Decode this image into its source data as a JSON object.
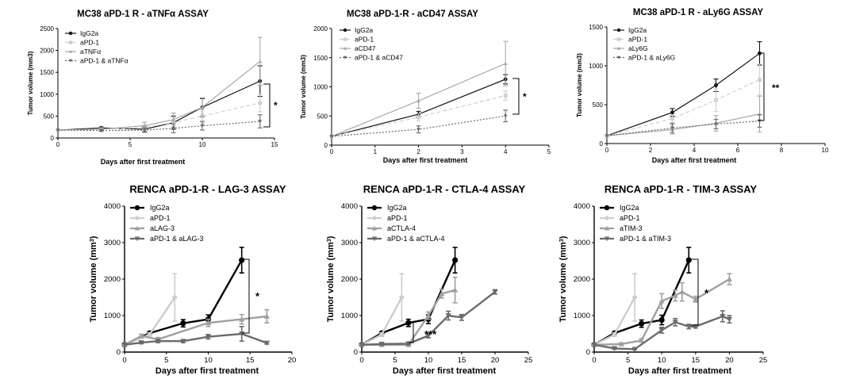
{
  "chart_data": [
    {
      "type": "line",
      "title": "MC38 aPD-1 R - aTNFα ASSAY",
      "xlabel": "Days after first treatment",
      "ylabel": "Tumor volume (mm3)",
      "xlim": [
        0,
        15
      ],
      "ylim": [
        0,
        2500
      ],
      "xticks": [
        0,
        5,
        10,
        15
      ],
      "yticks": [
        0,
        500,
        1000,
        1500,
        2000,
        2500
      ],
      "legend_position": "top-left",
      "significance": "*",
      "series": [
        {
          "name": "IgG2a",
          "color": "#111111",
          "dash": "",
          "marker": "circle",
          "x": [
            0,
            3,
            6,
            8,
            10,
            14
          ],
          "y": [
            180,
            230,
            200,
            350,
            700,
            1300
          ],
          "err": [
            0,
            20,
            60,
            150,
            200,
            350
          ]
        },
        {
          "name": "aPD-1",
          "color": "#cfcfcf",
          "dash": "5,3",
          "marker": "square",
          "x": [
            0,
            3,
            6,
            8,
            10,
            14
          ],
          "y": [
            180,
            200,
            240,
            350,
            500,
            800
          ],
          "err": [
            0,
            20,
            60,
            120,
            150,
            200
          ]
        },
        {
          "name": "aTNFα",
          "color": "#a8a8a8",
          "dash": "",
          "marker": "triangle",
          "x": [
            0,
            3,
            6,
            8,
            10,
            14
          ],
          "y": [
            180,
            200,
            280,
            420,
            700,
            1750
          ],
          "err": [
            0,
            20,
            80,
            150,
            220,
            550
          ]
        },
        {
          "name": "aPD-1 & aTNFα",
          "color": "#6a6a6a",
          "dash": "2,2",
          "marker": "triangle-down",
          "x": [
            0,
            3,
            6,
            8,
            10,
            14
          ],
          "y": [
            180,
            170,
            180,
            220,
            280,
            380
          ],
          "err": [
            0,
            20,
            50,
            100,
            100,
            150
          ]
        }
      ]
    },
    {
      "type": "line",
      "title": "MC38 aPD-1-R - aCD47 ASSAY",
      "xlabel": "Days after first treatment",
      "ylabel": "Tumor volume (mm3)",
      "xlim": [
        0,
        5
      ],
      "ylim": [
        0,
        2000
      ],
      "xticks": [
        0,
        1,
        2,
        3,
        4,
        5
      ],
      "yticks": [
        0,
        500,
        1000,
        1500,
        2000
      ],
      "legend_position": "top-left",
      "significance": "*",
      "series": [
        {
          "name": "IgG2a",
          "color": "#111111",
          "dash": "",
          "marker": "circle",
          "x": [
            0,
            2,
            4
          ],
          "y": [
            150,
            530,
            1130
          ],
          "err": [
            0,
            50,
            80
          ]
        },
        {
          "name": "aPD-1",
          "color": "#cfcfcf",
          "dash": "5,3",
          "marker": "square",
          "x": [
            0,
            2,
            4
          ],
          "y": [
            150,
            480,
            850
          ],
          "err": [
            0,
            60,
            80
          ]
        },
        {
          "name": "aCD47",
          "color": "#a8a8a8",
          "dash": "",
          "marker": "triangle",
          "x": [
            0,
            2,
            4
          ],
          "y": [
            150,
            760,
            1400
          ],
          "err": [
            0,
            130,
            380
          ]
        },
        {
          "name": "aPD-1 & aCD47",
          "color": "#6a6a6a",
          "dash": "2,2",
          "marker": "triangle-down",
          "x": [
            0,
            2,
            4
          ],
          "y": [
            150,
            270,
            500
          ],
          "err": [
            0,
            60,
            100
          ]
        }
      ]
    },
    {
      "type": "line",
      "title": "MC38 aPD-1 R - aLy6G ASSAY",
      "xlabel": "Days after first treatment",
      "ylabel": "Tumor volume (mm3)",
      "xlim": [
        0,
        10
      ],
      "ylim": [
        0,
        1500
      ],
      "xticks": [
        0,
        2,
        4,
        6,
        8,
        10
      ],
      "yticks": [
        0,
        500,
        1000,
        1500
      ],
      "legend_position": "top-left",
      "significance": "**",
      "series": [
        {
          "name": "IgG2a",
          "color": "#111111",
          "dash": "",
          "marker": "circle",
          "x": [
            0,
            3,
            5,
            7
          ],
          "y": [
            100,
            400,
            750,
            1160
          ],
          "err": [
            0,
            50,
            80,
            150
          ]
        },
        {
          "name": "aPD-1",
          "color": "#cfcfcf",
          "dash": "5,3",
          "marker": "square",
          "x": [
            0,
            3,
            5,
            7
          ],
          "y": [
            100,
            320,
            560,
            820
          ],
          "err": [
            0,
            50,
            150,
            200
          ]
        },
        {
          "name": "aLy6G",
          "color": "#a8a8a8",
          "dash": "",
          "marker": "triangle",
          "x": [
            0,
            3,
            5,
            7
          ],
          "y": [
            100,
            180,
            260,
            380
          ],
          "err": [
            0,
            60,
            100,
            230
          ]
        },
        {
          "name": "aPD-1 & aLy6G",
          "color": "#6a6a6a",
          "dash": "2,2",
          "marker": "triangle-down",
          "x": [
            0,
            3,
            5,
            7
          ],
          "y": [
            100,
            200,
            250,
            290
          ],
          "err": [
            0,
            60,
            60,
            80
          ]
        }
      ]
    },
    {
      "type": "line",
      "title": "RENCA aPD-1-R - LAG-3 ASSAY",
      "xlabel": "Days after first treatment",
      "ylabel": "Tumor volume (mm",
      "ylabel_sup": "3",
      "ylabel_end": ")",
      "xlim": [
        0,
        20
      ],
      "ylim": [
        0,
        4000
      ],
      "xticks": [
        0,
        5,
        10,
        15,
        20
      ],
      "yticks": [
        0,
        1000,
        2000,
        3000,
        4000
      ],
      "legend_position": "top-left",
      "significance": "*",
      "series": [
        {
          "name": "IgG2a",
          "color": "#000000",
          "dash": "",
          "marker": "circle",
          "x": [
            0,
            3,
            7,
            10,
            14
          ],
          "y": [
            200,
            520,
            790,
            900,
            2520
          ],
          "err": [
            0,
            40,
            100,
            120,
            350
          ]
        },
        {
          "name": "aPD-1",
          "color": "#cdcdcd",
          "dash": "",
          "marker": "diamond",
          "x": [
            0,
            3,
            6
          ],
          "y": [
            200,
            480,
            1500
          ],
          "err": [
            0,
            50,
            650
          ]
        },
        {
          "name": "aLAG-3",
          "color": "#a0a0a0",
          "dash": "",
          "marker": "triangle",
          "x": [
            0,
            2,
            4,
            10,
            14,
            17
          ],
          "y": [
            200,
            440,
            350,
            800,
            900,
            980
          ],
          "err": [
            0,
            50,
            50,
            100,
            130,
            180
          ]
        },
        {
          "name": "aPD-1 & aLAG-3",
          "color": "#6b6b6b",
          "dash": "",
          "marker": "triangle-down",
          "x": [
            0,
            2,
            4,
            7,
            10,
            14,
            17
          ],
          "y": [
            200,
            260,
            300,
            300,
            420,
            500,
            250
          ],
          "err": [
            0,
            30,
            40,
            40,
            60,
            200,
            30
          ]
        }
      ]
    },
    {
      "type": "line",
      "title": "RENCA aPD-1-R - CTLA-4 ASSAY",
      "xlabel": "Days after first treatment",
      "ylabel": "Tumor volume (mm",
      "ylabel_sup": "3",
      "ylabel_end": ")",
      "xlim": [
        0,
        25
      ],
      "ylim": [
        0,
        4000
      ],
      "xticks": [
        0,
        5,
        10,
        15,
        20,
        25
      ],
      "yticks": [
        0,
        1000,
        2000,
        3000,
        4000
      ],
      "legend_position": "top-left",
      "significance": "***",
      "series": [
        {
          "name": "IgG2a",
          "color": "#000000",
          "dash": "",
          "marker": "circle",
          "x": [
            0,
            3,
            7,
            10,
            14
          ],
          "y": [
            200,
            520,
            800,
            900,
            2520
          ],
          "err": [
            0,
            40,
            100,
            120,
            350
          ]
        },
        {
          "name": "aPD-1",
          "color": "#cdcdcd",
          "dash": "",
          "marker": "diamond",
          "x": [
            0,
            3,
            6
          ],
          "y": [
            200,
            480,
            1500
          ],
          "err": [
            0,
            50,
            650
          ]
        },
        {
          "name": "aCTLA-4",
          "color": "#a0a0a0",
          "dash": "",
          "marker": "triangle",
          "x": [
            0,
            3,
            7,
            10,
            12,
            14
          ],
          "y": [
            200,
            200,
            200,
            1000,
            1600,
            1700
          ],
          "err": [
            0,
            30,
            30,
            100,
            120,
            350
          ]
        },
        {
          "name": "aPD-1 & aCTLA-4",
          "color": "#6b6b6b",
          "dash": "",
          "marker": "triangle-down",
          "x": [
            0,
            3,
            7,
            10,
            13,
            15,
            20
          ],
          "y": [
            200,
            220,
            230,
            450,
            1000,
            950,
            1650
          ],
          "err": [
            0,
            30,
            30,
            60,
            120,
            80,
            60
          ]
        }
      ]
    },
    {
      "type": "line",
      "title": "RENCA aPD-1-R - TIM-3 ASSAY",
      "xlabel": "Days after first treatment",
      "ylabel": "Tumor volume (mm",
      "ylabel_sup": "3",
      "ylabel_end": ")",
      "xlim": [
        0,
        25
      ],
      "ylim": [
        0,
        4000
      ],
      "xticks": [
        0,
        5,
        10,
        15,
        20,
        25
      ],
      "yticks": [
        0,
        1000,
        2000,
        3000,
        4000
      ],
      "legend_position": "top-left",
      "significance": "*",
      "series": [
        {
          "name": "IgG2a",
          "color": "#000000",
          "dash": "",
          "marker": "circle",
          "x": [
            0,
            3,
            7,
            10,
            14
          ],
          "y": [
            200,
            520,
            780,
            880,
            2520
          ],
          "err": [
            0,
            40,
            100,
            130,
            350
          ]
        },
        {
          "name": "aPD-1",
          "color": "#cdcdcd",
          "dash": "",
          "marker": "diamond",
          "x": [
            0,
            3,
            6
          ],
          "y": [
            200,
            480,
            1500
          ],
          "err": [
            0,
            50,
            650
          ]
        },
        {
          "name": "aTIM-3",
          "color": "#a0a0a0",
          "dash": "",
          "marker": "triangle",
          "x": [
            0,
            4,
            7,
            10,
            12,
            13,
            15,
            20
          ],
          "y": [
            200,
            220,
            320,
            1400,
            1550,
            1650,
            1450,
            2000
          ],
          "err": [
            0,
            30,
            50,
            200,
            150,
            250,
            80,
            150
          ]
        },
        {
          "name": "aPD-1 & aTIM-3",
          "color": "#6b6b6b",
          "dash": "",
          "marker": "triangle-down",
          "x": [
            0,
            3,
            6,
            10,
            12,
            14,
            15,
            19,
            20
          ],
          "y": [
            200,
            100,
            80,
            600,
            820,
            700,
            700,
            980,
            900
          ],
          "err": [
            0,
            20,
            20,
            80,
            100,
            60,
            40,
            150,
            100
          ]
        }
      ]
    }
  ]
}
